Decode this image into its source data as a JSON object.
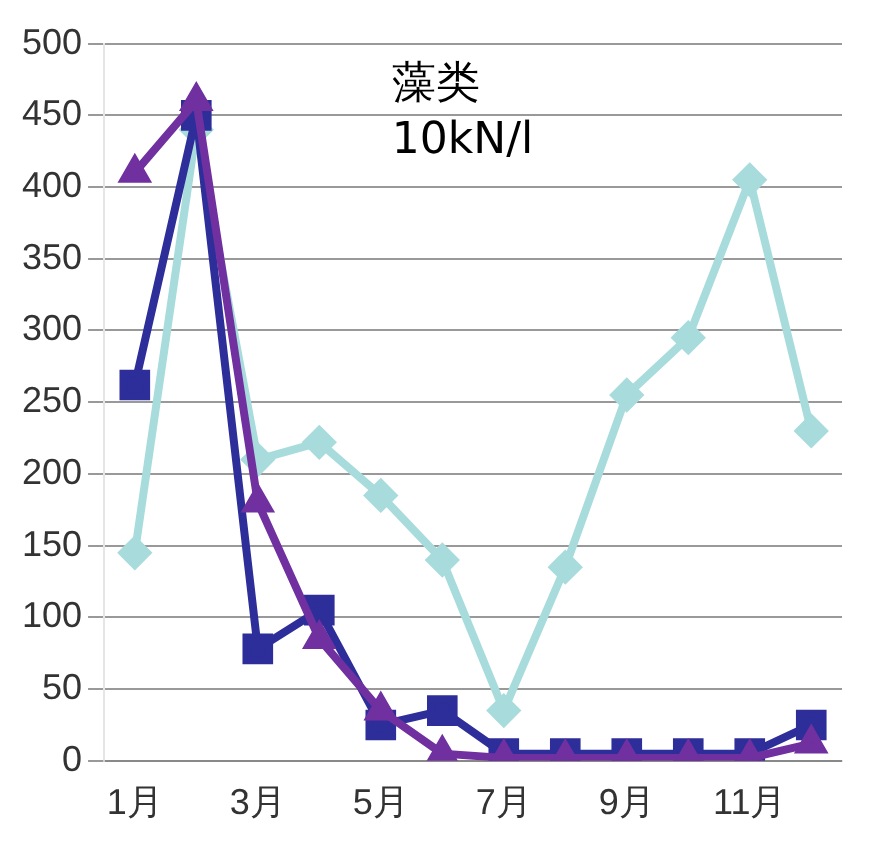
{
  "chart_data": {
    "type": "line",
    "categories": [
      "1月",
      null,
      "3月",
      null,
      "5月",
      null,
      "7月",
      null,
      "9月",
      null,
      "11月",
      null
    ],
    "series": [
      {
        "color": "#a8dcdc",
        "marker": "diamond",
        "values": [
          145,
          440,
          210,
          222,
          185,
          140,
          35,
          135,
          255,
          295,
          405,
          230
        ]
      },
      {
        "color": "#2e2e9a",
        "marker": "square",
        "values": [
          262,
          450,
          78,
          105,
          25,
          35,
          5,
          5,
          5,
          5,
          5,
          25
        ]
      },
      {
        "color": "#7030a0",
        "marker": "triangle",
        "values": [
          410,
          460,
          180,
          85,
          35,
          5,
          2,
          2,
          2,
          2,
          2,
          12
        ]
      }
    ],
    "ylim": [
      0,
      500
    ],
    "yticks": [
      0,
      50,
      100,
      150,
      200,
      250,
      300,
      350,
      400,
      450,
      500
    ],
    "grid": "y",
    "legend": false,
    "annotations": [
      "藻类\n10kN/l"
    ]
  }
}
